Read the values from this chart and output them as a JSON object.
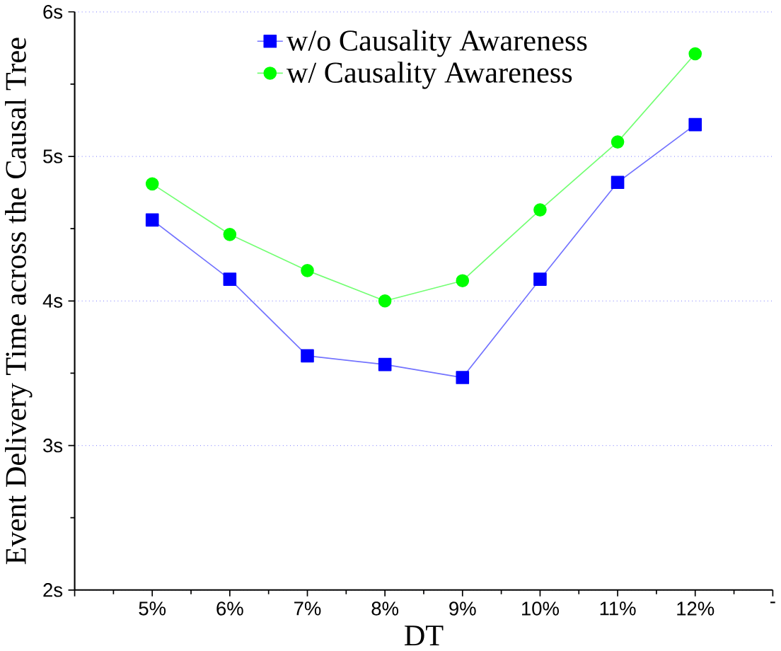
{
  "chart_data": {
    "type": "line",
    "xlabel": "DT",
    "ylabel": "Event Delivery Time across the Causal Tree",
    "x": [
      5,
      6,
      7,
      8,
      9,
      10,
      11,
      12
    ],
    "xlim": [
      4,
      13
    ],
    "xticks": [
      {
        "value": 4,
        "label": null
      },
      {
        "value": 5,
        "label": "5%"
      },
      {
        "value": 6,
        "label": "6%"
      },
      {
        "value": 7,
        "label": "7%"
      },
      {
        "value": 8,
        "label": "8%"
      },
      {
        "value": 9,
        "label": "9%"
      },
      {
        "value": 10,
        "label": "10%"
      },
      {
        "value": 11,
        "label": "11%"
      },
      {
        "value": 12,
        "label": "12%"
      },
      {
        "value": 13,
        "label": "-"
      }
    ],
    "ylim": [
      2,
      6
    ],
    "yticks": [
      {
        "value": 2,
        "label": "2s"
      },
      {
        "value": 3,
        "label": "3s"
      },
      {
        "value": 4,
        "label": "4s"
      },
      {
        "value": 5,
        "label": "5s"
      },
      {
        "value": 6,
        "label": "6s"
      }
    ],
    "grid": "y",
    "legend": "top",
    "series": [
      {
        "name": "w/o Causality Awareness",
        "color": "#0000ff",
        "marker": "square",
        "values": [
          4.56,
          4.15,
          3.62,
          3.56,
          3.47,
          4.15,
          4.82,
          5.22
        ]
      },
      {
        "name": "w/ Causality Awareness",
        "color": "#00ff00",
        "marker": "circle",
        "values": [
          4.81,
          4.46,
          4.21,
          4.0,
          4.14,
          4.63,
          5.1,
          5.71
        ]
      }
    ]
  }
}
